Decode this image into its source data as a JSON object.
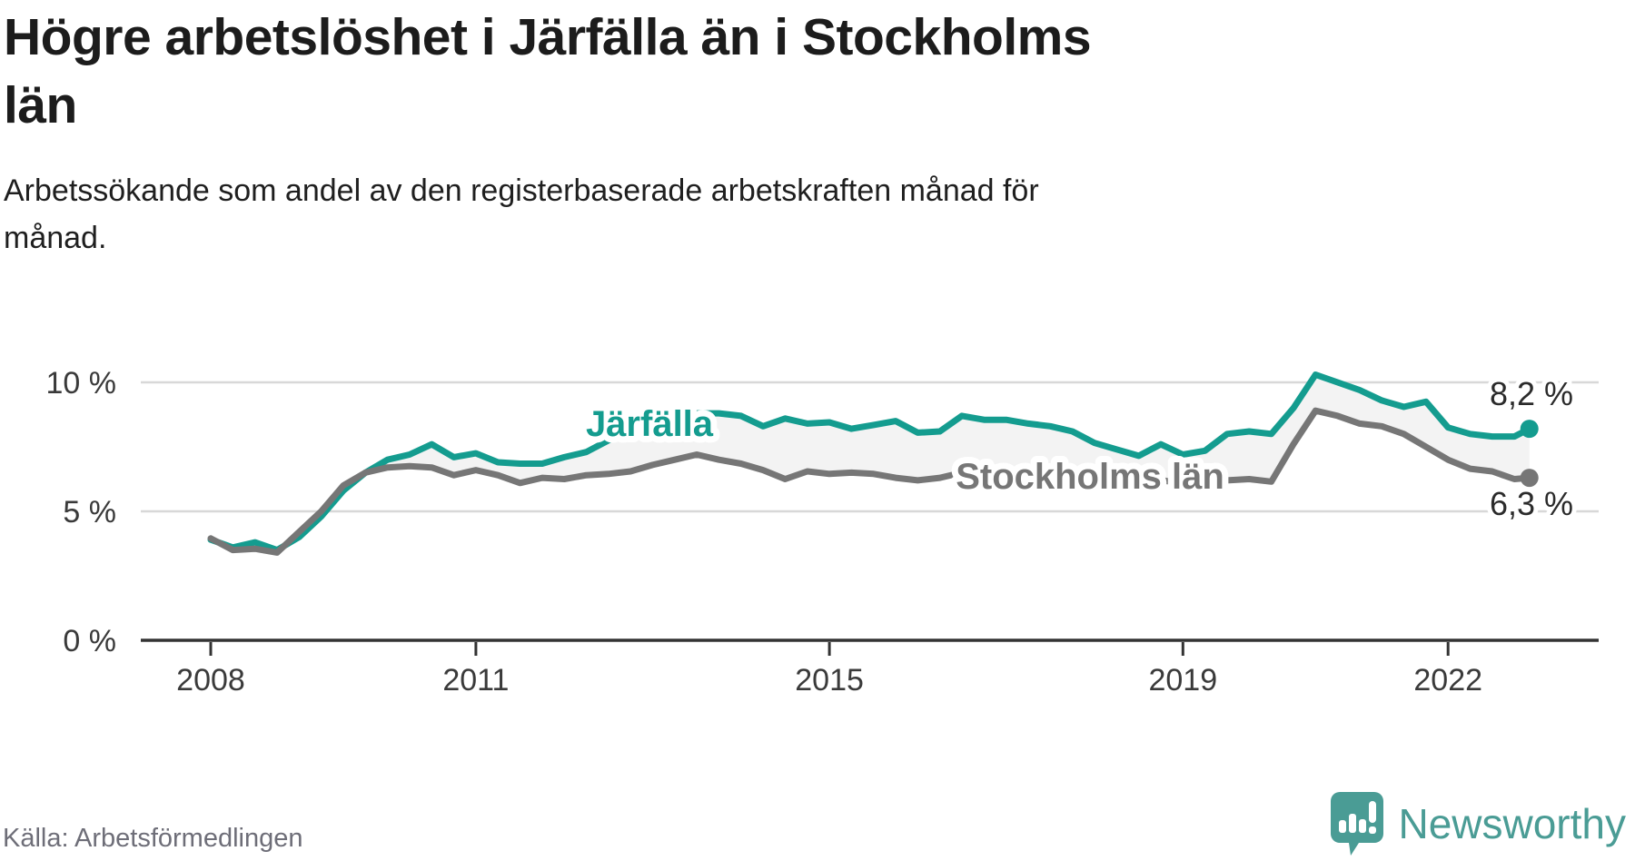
{
  "title_lines": [
    "Högre arbetslöshet i Järfälla än i Stockholms",
    "län"
  ],
  "subtitle_lines": [
    "Arbetssökande som andel av den registerbaserade arbetskraften månad för",
    "månad."
  ],
  "source": "Källa: Arbetsförmedlingen",
  "branding": {
    "name": "Newsworthy",
    "logo_icon": "bar-chart-speech-bubble-icon",
    "color": "#4a9c95"
  },
  "chart_data": {
    "type": "line",
    "description": "Arbetssökande som andel av den registerbaserade arbetskraften månad för månad",
    "unit": "%",
    "grid": true,
    "ylim": [
      0,
      13
    ],
    "y_ticks": [
      {
        "value": 0,
        "label": "0 %"
      },
      {
        "value": 5,
        "label": "5 %"
      },
      {
        "value": 10,
        "label": "10 %"
      }
    ],
    "x_ticks": [
      {
        "value": 2008,
        "label": "2008"
      },
      {
        "value": 2011,
        "label": "2011"
      },
      {
        "value": 2015,
        "label": "2015"
      },
      {
        "value": 2019,
        "label": "2019"
      },
      {
        "value": 2022,
        "label": "2022"
      }
    ],
    "x": [
      2008.0,
      2008.25,
      2008.5,
      2008.75,
      2009.0,
      2009.25,
      2009.5,
      2009.75,
      2010.0,
      2010.25,
      2010.5,
      2010.75,
      2011.0,
      2011.25,
      2011.5,
      2011.75,
      2012.0,
      2012.25,
      2012.5,
      2012.75,
      2013.0,
      2013.25,
      2013.5,
      2013.75,
      2014.0,
      2014.25,
      2014.5,
      2014.75,
      2015.0,
      2015.25,
      2015.5,
      2015.75,
      2016.0,
      2016.25,
      2016.5,
      2016.75,
      2017.0,
      2017.25,
      2017.5,
      2017.75,
      2018.0,
      2018.25,
      2018.5,
      2018.75,
      2019.0,
      2019.25,
      2019.5,
      2019.75,
      2020.0,
      2020.25,
      2020.5,
      2020.75,
      2021.0,
      2021.25,
      2021.5,
      2021.75,
      2022.0,
      2022.25,
      2022.5,
      2022.75,
      2022.92
    ],
    "band_fill": "#f3f3f3",
    "series": [
      {
        "name": "Järfälla",
        "color": "#149c8f",
        "end_label": "8,2 %",
        "end_value": 8.2,
        "values": [
          3.9,
          3.6,
          3.8,
          3.5,
          4.0,
          4.8,
          5.8,
          6.5,
          7.0,
          7.2,
          7.6,
          7.1,
          7.25,
          6.9,
          6.85,
          6.85,
          7.1,
          7.3,
          7.75,
          8.2,
          8.5,
          8.7,
          8.8,
          8.8,
          8.7,
          8.3,
          8.6,
          8.4,
          8.45,
          8.2,
          8.35,
          8.5,
          8.05,
          8.1,
          8.7,
          8.55,
          8.55,
          8.4,
          8.3,
          8.1,
          7.65,
          7.4,
          7.15,
          7.6,
          7.2,
          7.35,
          8.0,
          8.1,
          8.0,
          9.0,
          10.3,
          10.0,
          9.7,
          9.3,
          9.05,
          9.25,
          8.25,
          8.0,
          7.9,
          7.9,
          8.2
        ]
      },
      {
        "name": "Stockholms län",
        "color": "#767676",
        "end_label": "6,3 %",
        "end_value": 6.3,
        "values": [
          3.95,
          3.5,
          3.55,
          3.4,
          4.2,
          5.0,
          6.0,
          6.5,
          6.7,
          6.75,
          6.7,
          6.4,
          6.6,
          6.4,
          6.1,
          6.3,
          6.25,
          6.4,
          6.45,
          6.55,
          6.8,
          7.0,
          7.2,
          7.0,
          6.85,
          6.6,
          6.25,
          6.55,
          6.45,
          6.5,
          6.45,
          6.3,
          6.2,
          6.3,
          6.5,
          6.5,
          6.45,
          6.4,
          6.35,
          6.3,
          6.2,
          6.1,
          6.1,
          6.2,
          6.1,
          6.15,
          6.2,
          6.25,
          6.15,
          7.6,
          8.9,
          8.7,
          8.4,
          8.3,
          8.0,
          7.5,
          7.0,
          6.65,
          6.55,
          6.25,
          6.3
        ]
      }
    ]
  }
}
